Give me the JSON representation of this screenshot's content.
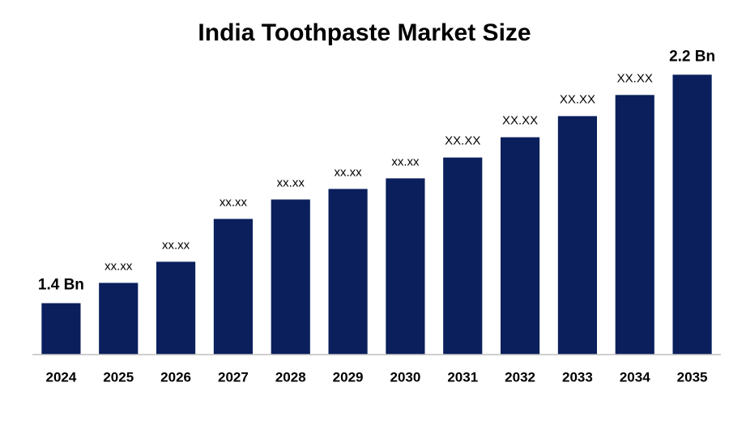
{
  "chart_data": {
    "type": "bar",
    "title": "India Toothpaste Market Size",
    "categories": [
      "2024",
      "2025",
      "2026",
      "2027",
      "2028",
      "2029",
      "2030",
      "2031",
      "2032",
      "2033",
      "2034",
      "2035"
    ],
    "values": [
      1.4,
      1.471,
      1.545,
      1.695,
      1.763,
      1.8,
      1.837,
      1.91,
      1.981,
      2.055,
      2.129,
      2.2
    ],
    "value_labels": [
      "1.4 Bn",
      "xx.xx",
      "xx.xx",
      "xx.xx",
      "xx.xx",
      "xx.xx",
      "xx.xx",
      "XX.XX",
      "XX.XX",
      "XX.XX",
      "XX.XX",
      "2.2 Bn"
    ],
    "color": "#0a1f5c",
    "ylim": [
      1.22,
      2.3
    ]
  }
}
